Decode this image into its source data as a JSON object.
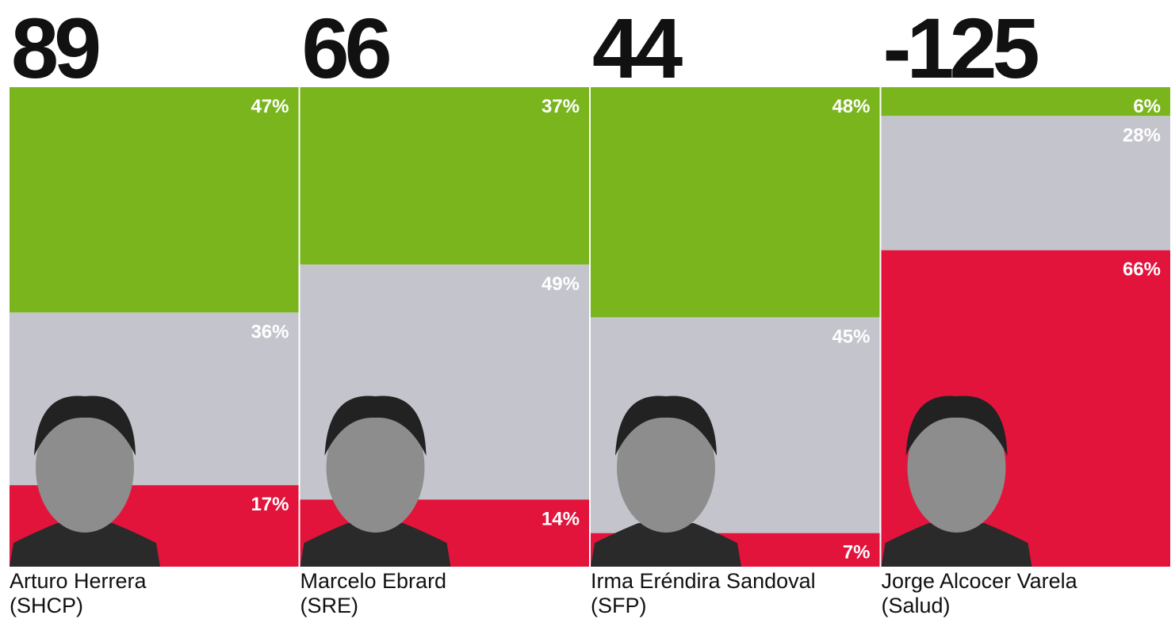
{
  "chart_data": {
    "type": "stacked-bar",
    "categories": [
      "Arturo Herrera",
      "Marcelo Ebrard",
      "Irma Eréndira Sandoval",
      "Jorge Alcocer Varela"
    ],
    "subtitles": [
      "(SHCP)",
      "(SRE)",
      "(SFP)",
      "(Salud)"
    ],
    "scores": [
      89,
      66,
      44,
      -125
    ],
    "ylim": [
      0,
      100
    ],
    "series": [
      {
        "color": "#7ab51d",
        "values": [
          47,
          37,
          48,
          6
        ],
        "value_labels": [
          "47%",
          "37%",
          "48%",
          "6%"
        ]
      },
      {
        "color": "#c4c4cc",
        "values": [
          36,
          49,
          45,
          28
        ],
        "value_labels": [
          "36%",
          "49%",
          "45%",
          "28%"
        ]
      },
      {
        "color": "#e2143c",
        "values": [
          17,
          14,
          7,
          66
        ],
        "value_labels": [
          "17%",
          "14%",
          "7%",
          "66%"
        ]
      }
    ]
  }
}
